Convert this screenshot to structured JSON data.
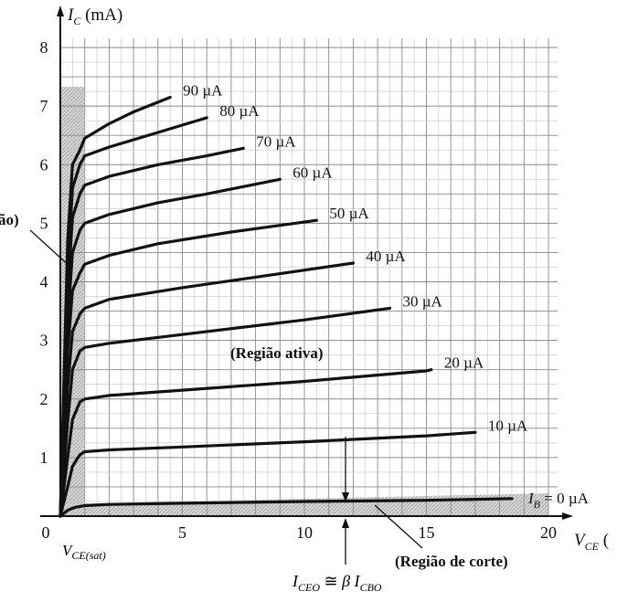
{
  "chart_data": {
    "type": "line",
    "xlabel": "V_CE (",
    "ylabel": "I_C (mA)",
    "xlim": [
      0,
      20
    ],
    "ylim": [
      0,
      8
    ],
    "x_ticks": [
      "0",
      "5",
      "10",
      "15",
      "20"
    ],
    "y_ticks": [
      "1",
      "2",
      "3",
      "4",
      "5",
      "6",
      "7",
      "8"
    ],
    "grid": true,
    "series": [
      {
        "name": "I_B = 0 µA",
        "label": "= 0 µA",
        "x": [
          0,
          0.3,
          0.6,
          1.0,
          2,
          5,
          10,
          15,
          18.5
        ],
        "y": [
          0,
          0.1,
          0.15,
          0.18,
          0.2,
          0.22,
          0.25,
          0.27,
          0.3
        ]
      },
      {
        "name": "10 µA",
        "label": "10 µA",
        "x": [
          0,
          0.3,
          0.5,
          0.8,
          1.0,
          2,
          5,
          10,
          15,
          17
        ],
        "y": [
          0,
          0.5,
          0.85,
          1.05,
          1.1,
          1.13,
          1.18,
          1.27,
          1.37,
          1.43
        ]
      },
      {
        "name": "20 µA",
        "label": "20 µA",
        "x": [
          0,
          0.3,
          0.5,
          0.8,
          1.0,
          2,
          5,
          10,
          15,
          15.2
        ],
        "y": [
          0,
          1.0,
          1.65,
          1.95,
          2.0,
          2.06,
          2.15,
          2.3,
          2.48,
          2.5
        ]
      },
      {
        "name": "30 µA",
        "label": "30 µA",
        "x": [
          0,
          0.3,
          0.5,
          0.8,
          1.0,
          2,
          5,
          10,
          13.5
        ],
        "y": [
          0,
          1.6,
          2.5,
          2.82,
          2.88,
          2.95,
          3.1,
          3.35,
          3.55
        ]
      },
      {
        "name": "40 µA",
        "label": "40 µA",
        "x": [
          0,
          0.3,
          0.5,
          0.8,
          1.0,
          2,
          5,
          8,
          12
        ],
        "y": [
          0,
          2.2,
          3.15,
          3.45,
          3.55,
          3.7,
          3.9,
          4.08,
          4.32
        ]
      },
      {
        "name": "50 µA",
        "label": "50 µA",
        "x": [
          0,
          0.3,
          0.5,
          0.8,
          1.0,
          2,
          4,
          7,
          10.5
        ],
        "y": [
          0,
          2.8,
          3.85,
          4.15,
          4.3,
          4.45,
          4.65,
          4.85,
          5.05
        ]
      },
      {
        "name": "60 µA",
        "label": "60 µA",
        "x": [
          0,
          0.3,
          0.5,
          0.8,
          1.0,
          2,
          4,
          6,
          9
        ],
        "y": [
          0,
          3.3,
          4.5,
          4.88,
          5.0,
          5.15,
          5.35,
          5.5,
          5.75
        ]
      },
      {
        "name": "70 µA",
        "label": "70 µA",
        "x": [
          0,
          0.3,
          0.5,
          0.8,
          1.0,
          2,
          4,
          6,
          7.5
        ],
        "y": [
          0,
          3.8,
          5.1,
          5.5,
          5.65,
          5.8,
          6.0,
          6.15,
          6.28
        ]
      },
      {
        "name": "80 µA",
        "label": "80 µA",
        "x": [
          0,
          0.3,
          0.5,
          0.8,
          1.0,
          2,
          4,
          6
        ],
        "y": [
          0,
          4.2,
          5.6,
          6.0,
          6.15,
          6.3,
          6.55,
          6.8
        ]
      },
      {
        "name": "90 µA",
        "label": "90 µA",
        "x": [
          0,
          0.3,
          0.5,
          0.8,
          1.0,
          2,
          3,
          4.5
        ],
        "y": [
          0,
          4.7,
          6.0,
          6.25,
          6.45,
          6.7,
          6.9,
          7.15
        ]
      }
    ],
    "annotations": {
      "cutoff_region": "(Região de corte)",
      "active_region": "(Região ativa)",
      "saturation_partial": "ão)",
      "vce_sat": "V_CE(sat)",
      "iceo": "I_CEO ≅ β I_CBO",
      "ib_prefix": "I_B"
    }
  }
}
